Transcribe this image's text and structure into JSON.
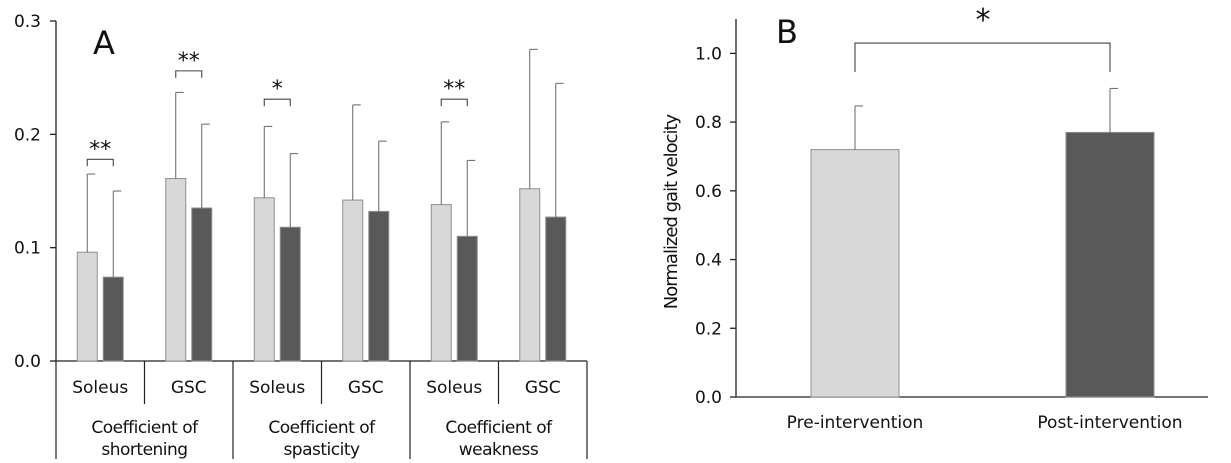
{
  "chart_data": [
    {
      "type": "bar",
      "panel_label": "A",
      "ylim": [
        0,
        0.3
      ],
      "yticks": [
        "0.0",
        "0.1",
        "0.2",
        "0.3"
      ],
      "group_labels": [
        "Coefficient of shortening",
        "Coefficient of spasticity",
        "Coefficient of weakness"
      ],
      "categories": [
        "Soleus",
        "GSC",
        "Soleus",
        "GSC",
        "Soleus",
        "GSC"
      ],
      "series": [
        {
          "color": "#d8d8d8",
          "values": [
            0.096,
            0.161,
            0.144,
            0.142,
            0.138,
            0.152
          ],
          "errors": [
            0.069,
            0.076,
            0.063,
            0.084,
            0.073,
            0.123
          ]
        },
        {
          "color": "#595959",
          "values": [
            0.074,
            0.135,
            0.118,
            0.132,
            0.11,
            0.127
          ],
          "errors": [
            0.076,
            0.074,
            0.065,
            0.062,
            0.067,
            0.118
          ]
        }
      ],
      "significance": [
        {
          "category_index": 0,
          "label": "**"
        },
        {
          "category_index": 1,
          "label": "**"
        },
        {
          "category_index": 2,
          "label": "*"
        },
        {
          "category_index": 4,
          "label": "**"
        }
      ]
    },
    {
      "type": "bar",
      "panel_label": "B",
      "ylabel": "Normalized gait velocity",
      "ylim": [
        0,
        1.1
      ],
      "yticks": [
        "0.0",
        "0.2",
        "0.4",
        "0.6",
        "0.8",
        "1.0"
      ],
      "categories": [
        "Pre-intervention",
        "Post-intervention"
      ],
      "values": [
        0.72,
        0.77
      ],
      "errors": [
        0.127,
        0.128
      ],
      "colors": [
        "#d8d8d8",
        "#595959"
      ],
      "significance": {
        "label": "*"
      }
    }
  ]
}
